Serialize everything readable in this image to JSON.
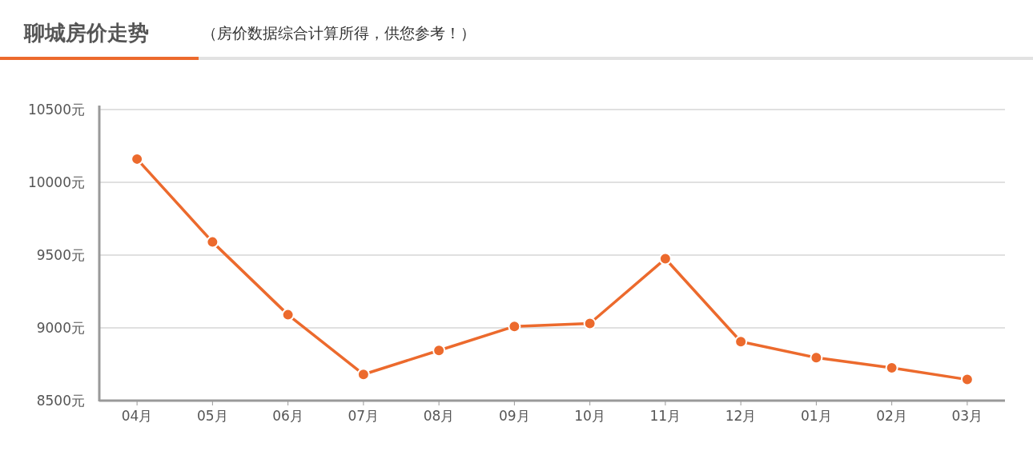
{
  "chart_data": {
    "type": "line",
    "title": "聊城房价走势",
    "subtitle": "（房价数据综合计算所得，供您参考！）",
    "categories": [
      "04月",
      "05月",
      "06月",
      "07月",
      "08月",
      "09月",
      "10月",
      "11月",
      "12月",
      "01月",
      "02月",
      "03月"
    ],
    "series": [
      {
        "color": "#ec6a2d",
        "values": [
          10160,
          9590,
          9090,
          8680,
          8845,
          9010,
          9030,
          9475,
          8905,
          8795,
          8725,
          8645
        ]
      }
    ],
    "ylim": [
      8500,
      10500
    ],
    "yticks": [
      {
        "value": 8500,
        "label": "8500元"
      },
      {
        "value": 9000,
        "label": "9000元"
      },
      {
        "value": 9500,
        "label": "9500元"
      },
      {
        "value": 10000,
        "label": "10000元"
      },
      {
        "value": 10500,
        "label": "10500元"
      }
    ],
    "grid": "y",
    "marker": "circle",
    "line_style": "solid"
  }
}
